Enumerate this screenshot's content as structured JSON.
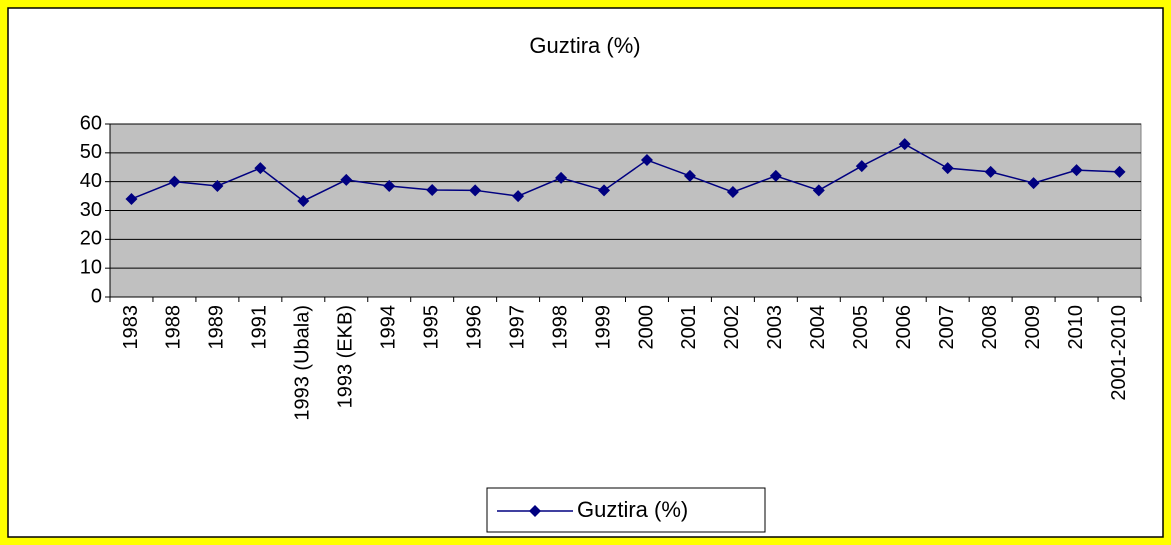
{
  "chart_data": {
    "type": "line",
    "title": "Guztira (%)",
    "categories": [
      "1983",
      "1988",
      "1989",
      "1991",
      "1993 (Ubala)",
      "1993 (EKB)",
      "1994",
      "1995",
      "1996",
      "1997",
      "1998",
      "1999",
      "2000",
      "2001",
      "2002",
      "2003",
      "2004",
      "2005",
      "2006",
      "2007",
      "2008",
      "2009",
      "2010",
      "2001-2010"
    ],
    "series": [
      {
        "name": "Guztira (%)",
        "color": "#000080",
        "values": [
          34,
          40,
          38.5,
          44.7,
          33.3,
          40.6,
          38.5,
          37.1,
          37,
          35,
          41.3,
          37,
          47.5,
          42,
          36.4,
          42,
          37,
          45.4,
          53,
          44.7,
          43.4,
          39.5,
          44,
          43.4
        ]
      }
    ],
    "ylim": [
      0,
      60
    ],
    "yticks": [
      0,
      10,
      20,
      30,
      40,
      50,
      60
    ],
    "grid": true,
    "legend": "bottom"
  }
}
